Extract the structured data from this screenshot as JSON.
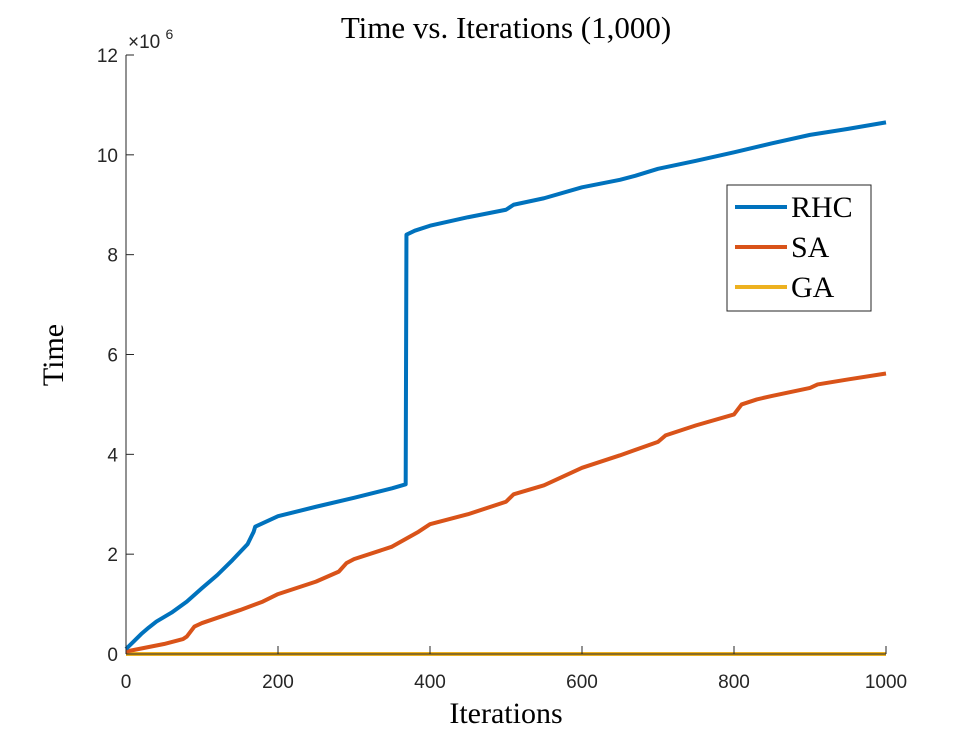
{
  "chart_data": {
    "type": "line",
    "title": "Time vs. Iterations (1,000)",
    "xlabel": "Iterations",
    "ylabel": "Time",
    "xlim": [
      0,
      1000
    ],
    "ylim": [
      0,
      12000000
    ],
    "y_exponent_label": "×10",
    "y_exponent_power": "6",
    "x_ticks": [
      {
        "value": 0,
        "label": "0"
      },
      {
        "value": 200,
        "label": "200"
      },
      {
        "value": 400,
        "label": "400"
      },
      {
        "value": 600,
        "label": "600"
      },
      {
        "value": 800,
        "label": "800"
      },
      {
        "value": 1000,
        "label": "1000"
      }
    ],
    "y_ticks": [
      {
        "value": 0,
        "label": "0"
      },
      {
        "value": 2000000,
        "label": "2"
      },
      {
        "value": 4000000,
        "label": "4"
      },
      {
        "value": 6000000,
        "label": "6"
      },
      {
        "value": 8000000,
        "label": "8"
      },
      {
        "value": 10000000,
        "label": "10"
      },
      {
        "value": 12000000,
        "label": "12"
      }
    ],
    "grid": false,
    "legend_position": "top-right",
    "series": [
      {
        "name": "RHC",
        "color": "#0072BD",
        "points": [
          [
            0,
            100000
          ],
          [
            10,
            250000
          ],
          [
            20,
            400000
          ],
          [
            30,
            530000
          ],
          [
            40,
            650000
          ],
          [
            60,
            830000
          ],
          [
            80,
            1050000
          ],
          [
            100,
            1320000
          ],
          [
            120,
            1580000
          ],
          [
            140,
            1880000
          ],
          [
            160,
            2200000
          ],
          [
            168,
            2450000
          ],
          [
            170,
            2550000
          ],
          [
            200,
            2760000
          ],
          [
            250,
            2950000
          ],
          [
            300,
            3130000
          ],
          [
            350,
            3320000
          ],
          [
            368,
            3400000
          ],
          [
            369,
            8400000
          ],
          [
            380,
            8480000
          ],
          [
            400,
            8580000
          ],
          [
            450,
            8750000
          ],
          [
            500,
            8900000
          ],
          [
            510,
            9000000
          ],
          [
            550,
            9130000
          ],
          [
            600,
            9350000
          ],
          [
            650,
            9500000
          ],
          [
            670,
            9580000
          ],
          [
            700,
            9720000
          ],
          [
            750,
            9880000
          ],
          [
            800,
            10050000
          ],
          [
            850,
            10230000
          ],
          [
            900,
            10400000
          ],
          [
            950,
            10520000
          ],
          [
            1000,
            10650000
          ]
        ]
      },
      {
        "name": "SA",
        "color": "#D95319",
        "points": [
          [
            0,
            50000
          ],
          [
            50,
            200000
          ],
          [
            75,
            300000
          ],
          [
            80,
            350000
          ],
          [
            90,
            550000
          ],
          [
            100,
            620000
          ],
          [
            150,
            880000
          ],
          [
            180,
            1050000
          ],
          [
            200,
            1200000
          ],
          [
            250,
            1450000
          ],
          [
            280,
            1650000
          ],
          [
            290,
            1820000
          ],
          [
            300,
            1900000
          ],
          [
            350,
            2150000
          ],
          [
            385,
            2450000
          ],
          [
            400,
            2600000
          ],
          [
            450,
            2800000
          ],
          [
            500,
            3050000
          ],
          [
            510,
            3200000
          ],
          [
            550,
            3380000
          ],
          [
            600,
            3730000
          ],
          [
            650,
            3980000
          ],
          [
            700,
            4250000
          ],
          [
            710,
            4380000
          ],
          [
            750,
            4580000
          ],
          [
            800,
            4800000
          ],
          [
            810,
            5000000
          ],
          [
            830,
            5100000
          ],
          [
            850,
            5170000
          ],
          [
            900,
            5330000
          ],
          [
            910,
            5400000
          ],
          [
            950,
            5500000
          ],
          [
            1000,
            5620000
          ]
        ]
      },
      {
        "name": "GA",
        "color": "#EDB120",
        "points": [
          [
            0,
            0
          ],
          [
            200,
            0
          ],
          [
            400,
            0
          ],
          [
            600,
            0
          ],
          [
            800,
            0
          ],
          [
            1000,
            0
          ]
        ]
      }
    ]
  }
}
